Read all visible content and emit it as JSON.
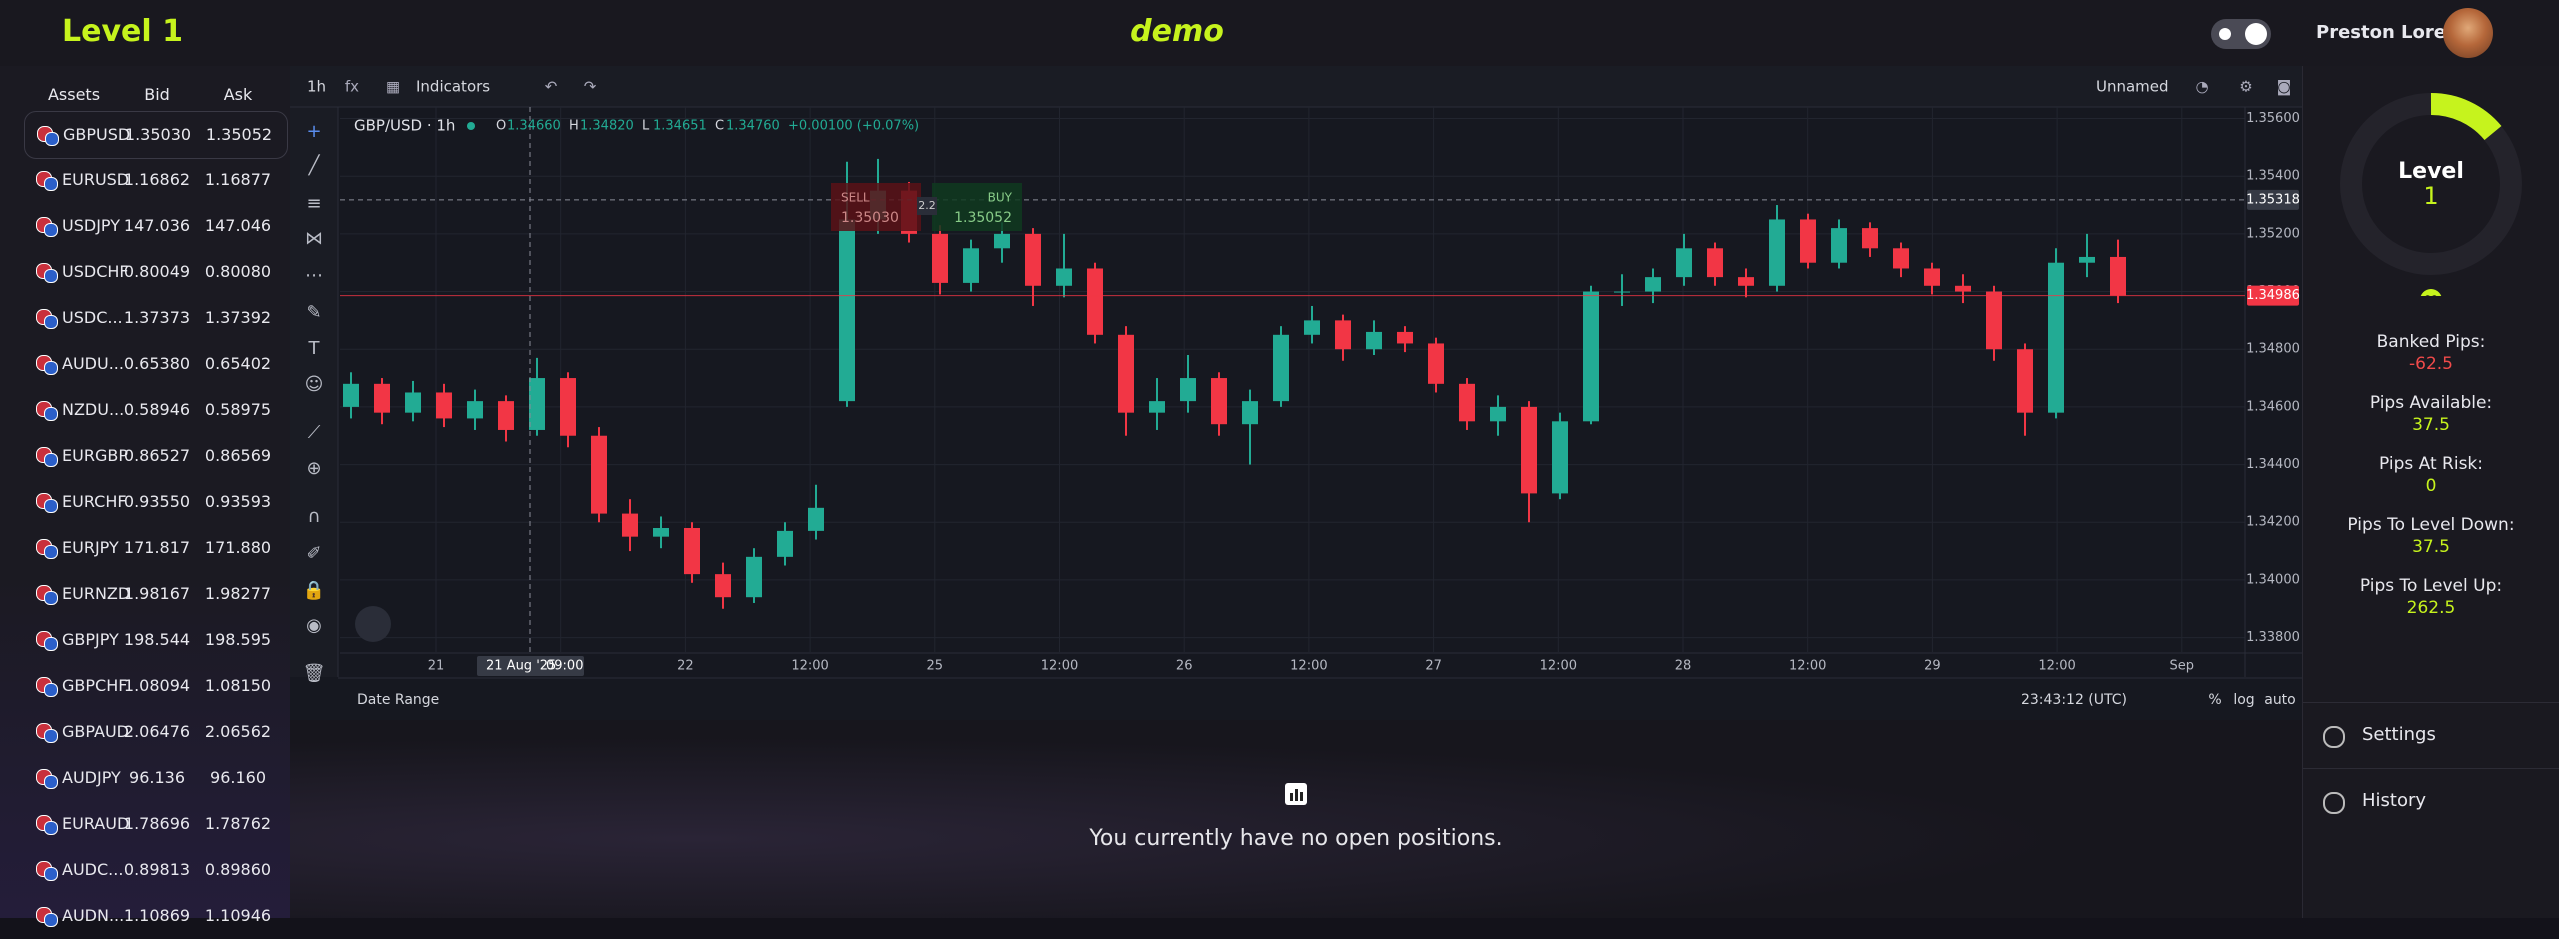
{
  "header": {
    "level_title": "Level 1",
    "mode": "demo",
    "user_name": "Preston Lorenz"
  },
  "assets": {
    "columns": [
      "Assets",
      "Bid",
      "Ask"
    ],
    "rows": [
      [
        "GBPUSD",
        "1.35030",
        "1.35052"
      ],
      [
        "EURUSD",
        "1.16862",
        "1.16877"
      ],
      [
        "USDJPY",
        "147.036",
        "147.046"
      ],
      [
        "USDCHF",
        "0.80049",
        "0.80080"
      ],
      [
        "USDC...",
        "1.37373",
        "1.37392"
      ],
      [
        "AUDU...",
        "0.65380",
        "0.65402"
      ],
      [
        "NZDU...",
        "0.58946",
        "0.58975"
      ],
      [
        "EURGBP",
        "0.86527",
        "0.86569"
      ],
      [
        "EURCHF",
        "0.93550",
        "0.93593"
      ],
      [
        "EURJPY",
        "171.817",
        "171.880"
      ],
      [
        "EURNZD",
        "1.98167",
        "1.98277"
      ],
      [
        "GBPJPY",
        "198.544",
        "198.595"
      ],
      [
        "GBPCHF",
        "1.08094",
        "1.08150"
      ],
      [
        "GBPAUD",
        "2.06476",
        "2.06562"
      ],
      [
        "AUDJPY",
        "96.136",
        "96.160"
      ],
      [
        "EURAUD",
        "1.78696",
        "1.78762"
      ],
      [
        "AUDC...",
        "0.89813",
        "0.89860"
      ],
      [
        "AUDN...",
        "1.10869",
        "1.10946"
      ]
    ]
  },
  "toolbar": {
    "interval": "1h",
    "indicators": "Indicators",
    "layout_name": "Unnamed"
  },
  "chart": {
    "type": "candlestick",
    "symbol": "GBP/USD · 1h",
    "ohlc_header": [
      {
        "key": "O",
        "value": "1.34660"
      },
      {
        "key": "H",
        "value": "1.34820"
      },
      {
        "key": "L",
        "value": "1.34651"
      },
      {
        "key": "C",
        "value": "1.34760"
      }
    ],
    "change": "+0.00100 (+0.07%)",
    "trade_box": {
      "sell_label": "SELL",
      "sell_price": "1.35030",
      "spread": "2.2",
      "buy_label": "BUY",
      "buy_price": "1.35052"
    },
    "up_color": "#22ab94",
    "down_color": "#f23645",
    "ylim": [
      1.3375,
      1.3564
    ],
    "yticks": [
      {
        "value": 1.338,
        "label": "1.33800"
      },
      {
        "value": 1.34,
        "label": "1.34000"
      },
      {
        "value": 1.342,
        "label": "1.34200"
      },
      {
        "value": 1.344,
        "label": "1.34400"
      },
      {
        "value": 1.346,
        "label": "1.34600"
      },
      {
        "value": 1.348,
        "label": "1.34800"
      },
      {
        "value": 1.35,
        "label": "1.35000"
      },
      {
        "value": 1.352,
        "label": "1.35200"
      },
      {
        "value": 1.354,
        "label": "1.35400"
      },
      {
        "value": 1.356,
        "label": "1.35600"
      }
    ],
    "crosshair_price": {
      "value": 1.35318,
      "label": "1.35318"
    },
    "last_price": {
      "value": 1.34986,
      "label": "1.34986"
    },
    "crosshair_time": "21 Aug '25",
    "crosshair_hour": "09:00",
    "xticks": [
      "21",
      null,
      "22",
      "12:00",
      "25",
      "12:00",
      "26",
      "12:00",
      "27",
      "12:00",
      "28",
      "12:00",
      "29",
      "12:00",
      "Sep"
    ],
    "candles": [
      [
        1.346,
        1.3472,
        1.3456,
        1.3468
      ],
      [
        1.3468,
        1.347,
        1.3454,
        1.3458
      ],
      [
        1.3458,
        1.3469,
        1.3455,
        1.3465
      ],
      [
        1.3465,
        1.3468,
        1.3453,
        1.3456
      ],
      [
        1.3456,
        1.3466,
        1.3452,
        1.3462
      ],
      [
        1.3462,
        1.3464,
        1.3448,
        1.3452
      ],
      [
        1.3452,
        1.3477,
        1.345,
        1.347
      ],
      [
        1.347,
        1.3472,
        1.3446,
        1.345
      ],
      [
        1.345,
        1.3453,
        1.342,
        1.3423
      ],
      [
        1.3423,
        1.3428,
        1.341,
        1.3415
      ],
      [
        1.3415,
        1.3422,
        1.3411,
        1.3418
      ],
      [
        1.3418,
        1.342,
        1.3399,
        1.3402
      ],
      [
        1.3402,
        1.3406,
        1.339,
        1.3394
      ],
      [
        1.3394,
        1.3411,
        1.3392,
        1.3408
      ],
      [
        1.3408,
        1.342,
        1.3405,
        1.3417
      ],
      [
        1.3417,
        1.3433,
        1.3414,
        1.3425
      ],
      [
        1.3462,
        1.3545,
        1.346,
        1.3525
      ],
      [
        1.3525,
        1.3546,
        1.352,
        1.3535
      ],
      [
        1.3535,
        1.3538,
        1.3517,
        1.352
      ],
      [
        1.352,
        1.3523,
        1.3499,
        1.3503
      ],
      [
        1.3503,
        1.3518,
        1.35,
        1.3515
      ],
      [
        1.3515,
        1.3524,
        1.351,
        1.352
      ],
      [
        1.352,
        1.3522,
        1.3495,
        1.3502
      ],
      [
        1.3502,
        1.352,
        1.3498,
        1.3508
      ],
      [
        1.3508,
        1.351,
        1.3482,
        1.3485
      ],
      [
        1.3485,
        1.3488,
        1.345,
        1.3458
      ],
      [
        1.3458,
        1.347,
        1.3452,
        1.3462
      ],
      [
        1.3462,
        1.3478,
        1.3458,
        1.347
      ],
      [
        1.347,
        1.3472,
        1.345,
        1.3454
      ],
      [
        1.3454,
        1.3466,
        1.344,
        1.3462
      ],
      [
        1.3462,
        1.3488,
        1.346,
        1.3485
      ],
      [
        1.3485,
        1.3495,
        1.3482,
        1.349
      ],
      [
        1.349,
        1.3492,
        1.3476,
        1.348
      ],
      [
        1.348,
        1.349,
        1.3478,
        1.3486
      ],
      [
        1.3486,
        1.3488,
        1.3479,
        1.3482
      ],
      [
        1.3482,
        1.3484,
        1.3465,
        1.3468
      ],
      [
        1.3468,
        1.347,
        1.3452,
        1.3455
      ],
      [
        1.3455,
        1.3464,
        1.345,
        1.346
      ],
      [
        1.346,
        1.3462,
        1.342,
        1.343
      ],
      [
        1.343,
        1.3458,
        1.3428,
        1.3455
      ],
      [
        1.3455,
        1.3502,
        1.3454,
        1.35
      ],
      [
        1.35,
        1.3506,
        1.3495,
        1.35
      ],
      [
        1.35,
        1.3508,
        1.3496,
        1.3505
      ],
      [
        1.3505,
        1.352,
        1.3502,
        1.3515
      ],
      [
        1.3515,
        1.3517,
        1.3502,
        1.3505
      ],
      [
        1.3505,
        1.3508,
        1.3498,
        1.3502
      ],
      [
        1.3502,
        1.353,
        1.35,
        1.3525
      ],
      [
        1.3525,
        1.3527,
        1.3508,
        1.351
      ],
      [
        1.351,
        1.3525,
        1.3508,
        1.3522
      ],
      [
        1.3522,
        1.3524,
        1.3512,
        1.3515
      ],
      [
        1.3515,
        1.3517,
        1.3505,
        1.3508
      ],
      [
        1.3508,
        1.351,
        1.3499,
        1.3502
      ],
      [
        1.3502,
        1.3506,
        1.3496,
        1.35
      ],
      [
        1.35,
        1.3502,
        1.3476,
        1.348
      ],
      [
        1.348,
        1.3482,
        1.345,
        1.3458
      ],
      [
        1.3458,
        1.3515,
        1.3456,
        1.351
      ],
      [
        1.351,
        1.352,
        1.3505,
        1.3512
      ],
      [
        1.3512,
        1.3518,
        1.3496,
        1.34986
      ]
    ]
  },
  "chart_footer": {
    "date_range": "Date Range",
    "clock": "23:43:12 (UTC)",
    "percent": "%",
    "log": "log",
    "auto": "auto"
  },
  "positions": {
    "empty_message": "You currently have no open positions."
  },
  "sidebar": {
    "gauge_title": "Level",
    "gauge_value": "1",
    "stats": [
      {
        "label": "Banked Pips:",
        "value": -62.5
      },
      {
        "label": "Pips Available:",
        "value": 37.5
      },
      {
        "label": "Pips At Risk:",
        "value": 0
      },
      {
        "label": "Pips To Level Down:",
        "value": 37.5
      },
      {
        "label": "Pips To Level Up:",
        "value": 262.5
      }
    ],
    "menu": [
      "Settings",
      "History"
    ]
  }
}
